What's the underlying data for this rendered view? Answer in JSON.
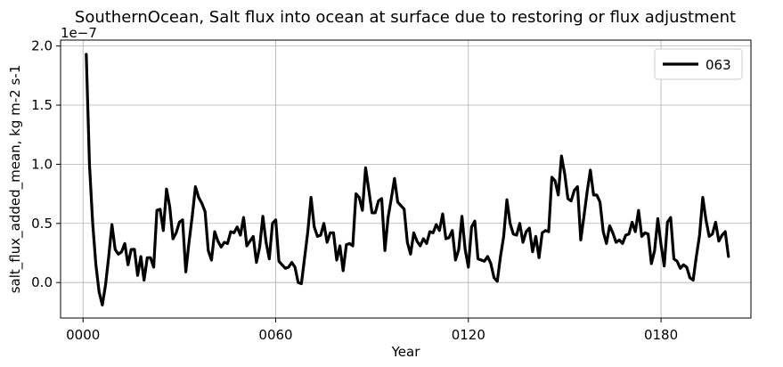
{
  "chart_data": {
    "type": "line",
    "title": "SouthernOcean, Salt flux into ocean at surface due to restoring or flux adjustment",
    "xlabel": "Year",
    "ylabel": "salt_flux_added_mean, kg m-2 s-1",
    "y_offset_label": "1e−7",
    "xlim": [
      -7,
      208
    ],
    "ylim": [
      -3e-08,
      2.05e-07
    ],
    "x_ticks": [
      0,
      60,
      120,
      180
    ],
    "x_tick_labels": [
      "0000",
      "0060",
      "0120",
      "0180"
    ],
    "y_ticks": [
      0.0,
      5e-08,
      1e-07,
      1.5e-07,
      2e-07
    ],
    "y_tick_labels": [
      "0.0",
      "0.5",
      "1.0",
      "1.5",
      "2.0"
    ],
    "grid": true,
    "legend": {
      "position": "top-right"
    },
    "series": [
      {
        "name": "063",
        "color": "#000000",
        "x_start": 1,
        "x_step": 1,
        "values": [
          1.93e-07,
          1e-07,
          5e-08,
          1.5e-08,
          -8e-09,
          -1.9e-08,
          -2e-09,
          2.2e-08,
          4.9e-08,
          2.8e-08,
          2.4e-08,
          2.6e-08,
          3.3e-08,
          1.5e-08,
          2.8e-08,
          2.8e-08,
          6e-09,
          2.2e-08,
          2e-09,
          2.1e-08,
          2.1e-08,
          1.3e-08,
          6.1e-08,
          6.2e-08,
          4.4e-08,
          7.9e-08,
          6.4e-08,
          3.7e-08,
          4.2e-08,
          5.1e-08,
          5.3e-08,
          9e-09,
          3.4e-08,
          5.6e-08,
          8.1e-08,
          7.2e-08,
          6.7e-08,
          6e-08,
          2.7e-08,
          1.9e-08,
          4.3e-08,
          3.5e-08,
          3e-08,
          3.4e-08,
          3.3e-08,
          4.3e-08,
          4.2e-08,
          4.7e-08,
          4e-08,
          5.5e-08,
          3.1e-08,
          3.5e-08,
          3.9e-08,
          1.7e-08,
          3e-08,
          5.6e-08,
          3.4e-08,
          2e-08,
          5e-08,
          5.3e-08,
          1.8e-08,
          1.5e-08,
          1.2e-08,
          1.3e-08,
          1.7e-08,
          1.3e-08,
          0.0,
          -1e-09,
          2.1e-08,
          4.3e-08,
          7.2e-08,
          4.7e-08,
          3.9e-08,
          4e-08,
          5e-08,
          3.4e-08,
          4.2e-08,
          4.2e-08,
          1.9e-08,
          3.1e-08,
          1e-08,
          3.2e-08,
          3.3e-08,
          3.1e-08,
          7.5e-08,
          7.2e-08,
          6.1e-08,
          9.7e-08,
          7.8e-08,
          5.9e-08,
          5.9e-08,
          6.9e-08,
          7.1e-08,
          2.7e-08,
          5.5e-08,
          7.1e-08,
          8.8e-08,
          6.8e-08,
          6.5e-08,
          6.2e-08,
          3.4e-08,
          2.4e-08,
          4.2e-08,
          3.5e-08,
          3.1e-08,
          3.7e-08,
          3.3e-08,
          4.3e-08,
          4.2e-08,
          4.9e-08,
          4.4e-08,
          5.8e-08,
          3.7e-08,
          3.8e-08,
          4.4e-08,
          1.9e-08,
          2.8e-08,
          5.6e-08,
          2.8e-08,
          1.3e-08,
          4.7e-08,
          5.2e-08,
          2e-08,
          1.9e-08,
          1.8e-08,
          2.2e-08,
          1.6e-08,
          4e-09,
          1e-09,
          2.2e-08,
          3.9e-08,
          7e-08,
          5e-08,
          4.1e-08,
          4e-08,
          5e-08,
          3.4e-08,
          4.3e-08,
          4.6e-08,
          2.6e-08,
          3.9e-08,
          2.1e-08,
          4.2e-08,
          4.4e-08,
          4.3e-08,
          8.9e-08,
          8.6e-08,
          7.4e-08,
          1.07e-07,
          9.2e-08,
          7.1e-08,
          6.9e-08,
          7.8e-08,
          8.1e-08,
          3.6e-08,
          5.6e-08,
          7.7e-08,
          9.5e-08,
          7.4e-08,
          7.4e-08,
          6.8e-08,
          4.3e-08,
          3.3e-08,
          4.8e-08,
          4.2e-08,
          3.4e-08,
          3.6e-08,
          3.3e-08,
          4e-08,
          4.1e-08,
          5.1e-08,
          4.3e-08,
          6.1e-08,
          3.9e-08,
          4.2e-08,
          4.1e-08,
          1.6e-08,
          2.7e-08,
          5.4e-08,
          3.2e-08,
          1.4e-08,
          5.1e-08,
          5.5e-08,
          2e-08,
          1.8e-08,
          1.2e-08,
          1.5e-08,
          1.3e-08,
          4e-09,
          2e-09,
          2.2e-08,
          4e-08,
          7.2e-08,
          5.3e-08,
          3.9e-08,
          4.1e-08,
          5.1e-08,
          3.5e-08,
          4e-08,
          4.3e-08,
          2.2e-08
        ]
      }
    ]
  }
}
